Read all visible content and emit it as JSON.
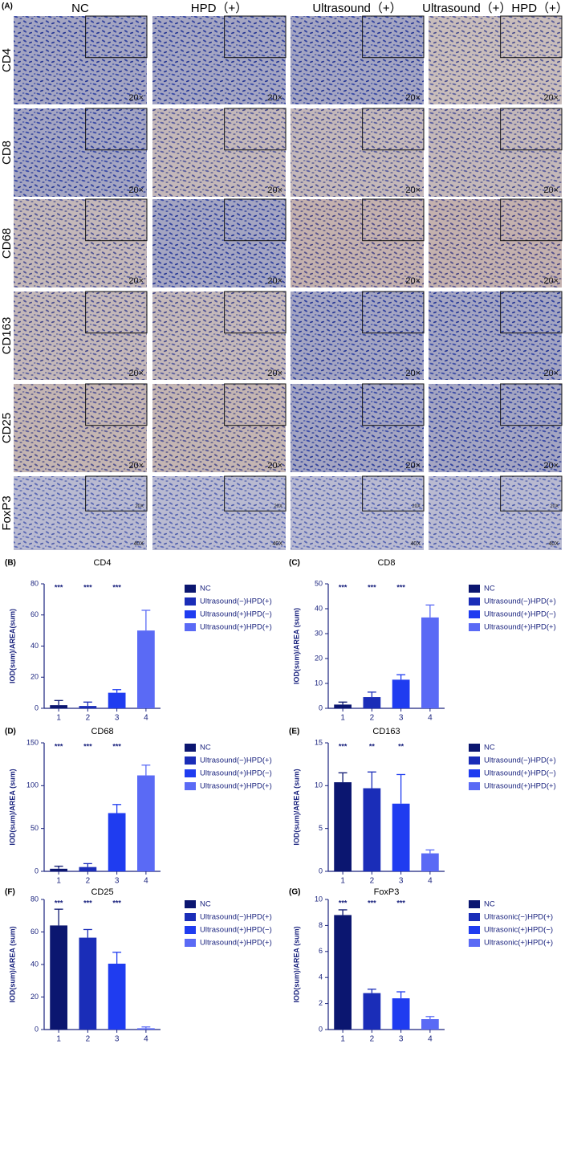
{
  "panel_a": {
    "label": "(A)",
    "columns": [
      "NC",
      "HPD（+）",
      "Ultrasound（+）",
      "Ultrasound（+）HPD（+）"
    ],
    "rows": [
      {
        "label": "CD4",
        "magnification": "20×"
      },
      {
        "label": "CD8",
        "magnification": "20×"
      },
      {
        "label": "CD68",
        "magnification": "20×"
      },
      {
        "label": "CD163",
        "magnification": "20×"
      },
      {
        "label": "CD25",
        "magnification": "20×"
      },
      {
        "label": "FoxP3",
        "magnification": "40X",
        "inset_label": "20X"
      }
    ]
  },
  "chart_data": [
    {
      "type": "bar",
      "panel": "(B)",
      "title": "CD4",
      "y_label": "IOD(sum)/AREA(sum)",
      "categories": [
        "1",
        "2",
        "3",
        "4"
      ],
      "values": [
        2,
        1.5,
        10,
        50
      ],
      "errors": [
        3,
        2.5,
        2,
        13
      ],
      "significance": [
        "***",
        "***",
        "***"
      ],
      "colors": [
        "#0b1670",
        "#1a2db8",
        "#1f3cf0",
        "#5a6af5"
      ],
      "legend": [
        "NC",
        "Ultrasound(−)HPD(+)",
        "Ultrasound(+)HPD(−)",
        "Ultrasound(+)HPD(+)"
      ],
      "ylim": [
        0,
        80
      ],
      "yticks": [
        0,
        20,
        40,
        60,
        80
      ]
    },
    {
      "type": "bar",
      "panel": "(C)",
      "title": "CD8",
      "y_label": "IOD(sum)/AREA (sum)",
      "categories": [
        "1",
        "2",
        "3",
        "4"
      ],
      "values": [
        1.5,
        4.5,
        11.5,
        36.5
      ],
      "errors": [
        1,
        2,
        2,
        5
      ],
      "significance": [
        "***",
        "***",
        "***"
      ],
      "colors": [
        "#0b1670",
        "#1a2db8",
        "#1f3cf0",
        "#5a6af5"
      ],
      "legend": [
        "NC",
        "Ultrasound(−)HPD(+)",
        "Ultrasound(+)HPD(−)",
        "Ultrasound(+)HPD(+)"
      ],
      "ylim": [
        0,
        50
      ],
      "yticks": [
        0,
        10,
        20,
        30,
        40,
        50
      ]
    },
    {
      "type": "bar",
      "panel": "(D)",
      "title": "CD68",
      "y_label": "IOD(sum)/AREA (sum)",
      "categories": [
        "1",
        "2",
        "3",
        "4"
      ],
      "values": [
        3,
        5,
        68,
        112
      ],
      "errors": [
        3,
        4,
        10,
        12
      ],
      "significance": [
        "***",
        "***",
        "***"
      ],
      "colors": [
        "#0b1670",
        "#1a2db8",
        "#1f3cf0",
        "#5a6af5"
      ],
      "legend": [
        "NC",
        "Ultrasound(−)HPD(+)",
        "Ultrasound(+)HPD(−)",
        "Ultrasound(+)HPD(+)"
      ],
      "ylim": [
        0,
        150
      ],
      "yticks": [
        0,
        50,
        100,
        150
      ]
    },
    {
      "type": "bar",
      "panel": "(E)",
      "title": "CD163",
      "y_label": "IOD(sum)/AREA (sum)",
      "categories": [
        "1",
        "2",
        "3",
        "4"
      ],
      "values": [
        10.4,
        9.7,
        7.9,
        2.1
      ],
      "errors": [
        1.1,
        1.9,
        3.4,
        0.4
      ],
      "significance": [
        "***",
        "**",
        "**"
      ],
      "colors": [
        "#0b1670",
        "#1a2db8",
        "#1f3cf0",
        "#5a6af5"
      ],
      "legend": [
        "NC",
        "Ultrasound(−)HPD(+)",
        "Ultrasound(+)HPD(−)",
        "Ultrasound(+)HPD(+)"
      ],
      "ylim": [
        0,
        15
      ],
      "yticks": [
        0,
        5,
        10,
        15
      ]
    },
    {
      "type": "bar",
      "panel": "(F)",
      "title": "CD25",
      "y_label": "IOD(sum)/AREA (sum)",
      "categories": [
        "1",
        "2",
        "3",
        "4"
      ],
      "values": [
        64,
        56.5,
        40.5,
        0.8
      ],
      "errors": [
        10,
        5,
        7,
        0.8
      ],
      "significance": [
        "***",
        "***",
        "***"
      ],
      "colors": [
        "#0b1670",
        "#1a2db8",
        "#1f3cf0",
        "#5a6af5"
      ],
      "legend": [
        "NC",
        "Ultrasound(−)HPD(+)",
        "Ultrasound(+)HPD(−)",
        "Ultrasound(+)HPD(+)"
      ],
      "ylim": [
        0,
        80
      ],
      "yticks": [
        0,
        20,
        40,
        60,
        80
      ]
    },
    {
      "type": "bar",
      "panel": "(G)",
      "title": "FoxP3",
      "y_label": "IOD(sum)/AREA (sum)",
      "categories": [
        "1",
        "2",
        "3",
        "4"
      ],
      "values": [
        8.8,
        2.8,
        2.4,
        0.8
      ],
      "errors": [
        0.4,
        0.3,
        0.5,
        0.2
      ],
      "significance": [
        "***",
        "***",
        "***"
      ],
      "colors": [
        "#0b1670",
        "#1a2db8",
        "#1f3cf0",
        "#5a6af5"
      ],
      "legend": [
        "NC",
        "Ultrasonic(−)HPD(+)",
        "Ultrasonic(+)HPD(−)",
        "Ultrasonic(+)HPD(+)"
      ],
      "ylim": [
        0,
        10
      ],
      "yticks": [
        0,
        2,
        4,
        6,
        8,
        10
      ]
    }
  ]
}
